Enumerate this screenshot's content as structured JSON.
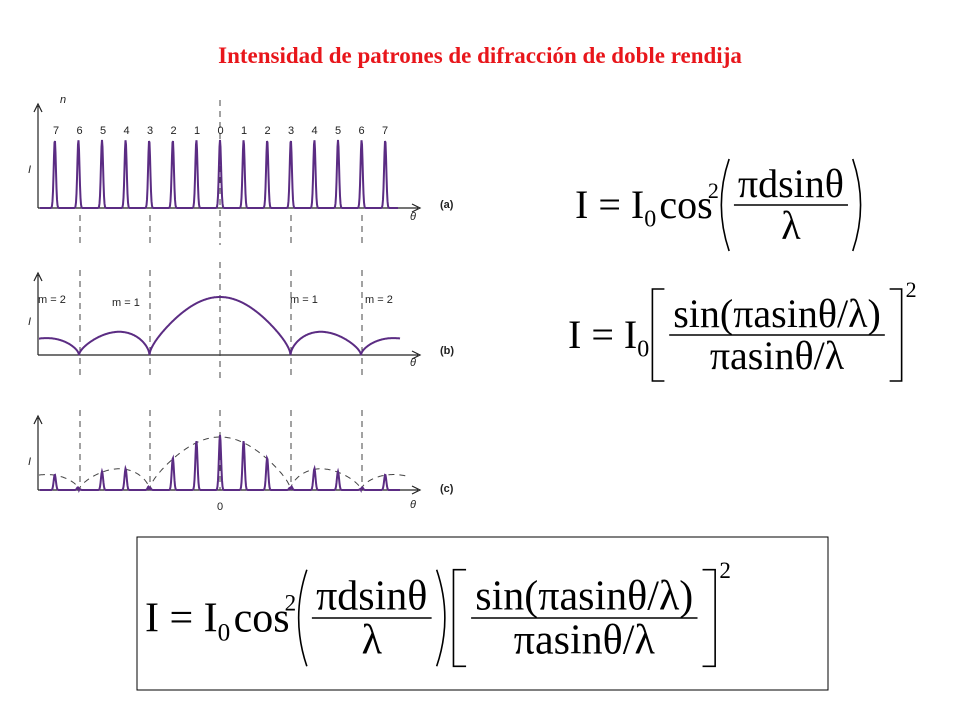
{
  "title": "Intensidad de patrones de difracción de doble rendija",
  "diagram": {
    "order_label": "n",
    "orders": [
      "7",
      "6",
      "5",
      "4",
      "3",
      "2",
      "1",
      "0",
      "1",
      "2",
      "3",
      "4",
      "5",
      "6",
      "7"
    ],
    "panels": [
      {
        "label": "(a)",
        "y_label": "I",
        "x_label": "θ"
      },
      {
        "label": "(b)",
        "y_label": "I",
        "x_label": "θ",
        "m_labels": [
          "m = 2",
          "m = 1",
          "m = 1",
          "m = 2"
        ]
      },
      {
        "label": "(c)",
        "y_label": "I",
        "x_label": "θ",
        "zero": "0"
      }
    ]
  },
  "formulas": [
    {
      "lhs": "I = I",
      "sub": "0",
      "func": "cos",
      "sup": "2",
      "factors": [
        {
          "bracket": "paren",
          "num": "πdsinθ",
          "den": "λ"
        }
      ]
    },
    {
      "lhs": "I = I",
      "sub": "0",
      "power": "2",
      "factors": [
        {
          "bracket": "square",
          "num": "sin(πasinθ/λ)",
          "den": "πasinθ/λ"
        }
      ]
    },
    {
      "lhs": "I = I",
      "sub": "0",
      "func": "cos",
      "sup": "2",
      "power": "2",
      "factors": [
        {
          "bracket": "paren",
          "num": "πdsinθ",
          "den": "λ"
        },
        {
          "bracket": "square",
          "num": "sin(πasinθ/λ)",
          "den": "πasinθ/λ"
        }
      ]
    }
  ]
}
